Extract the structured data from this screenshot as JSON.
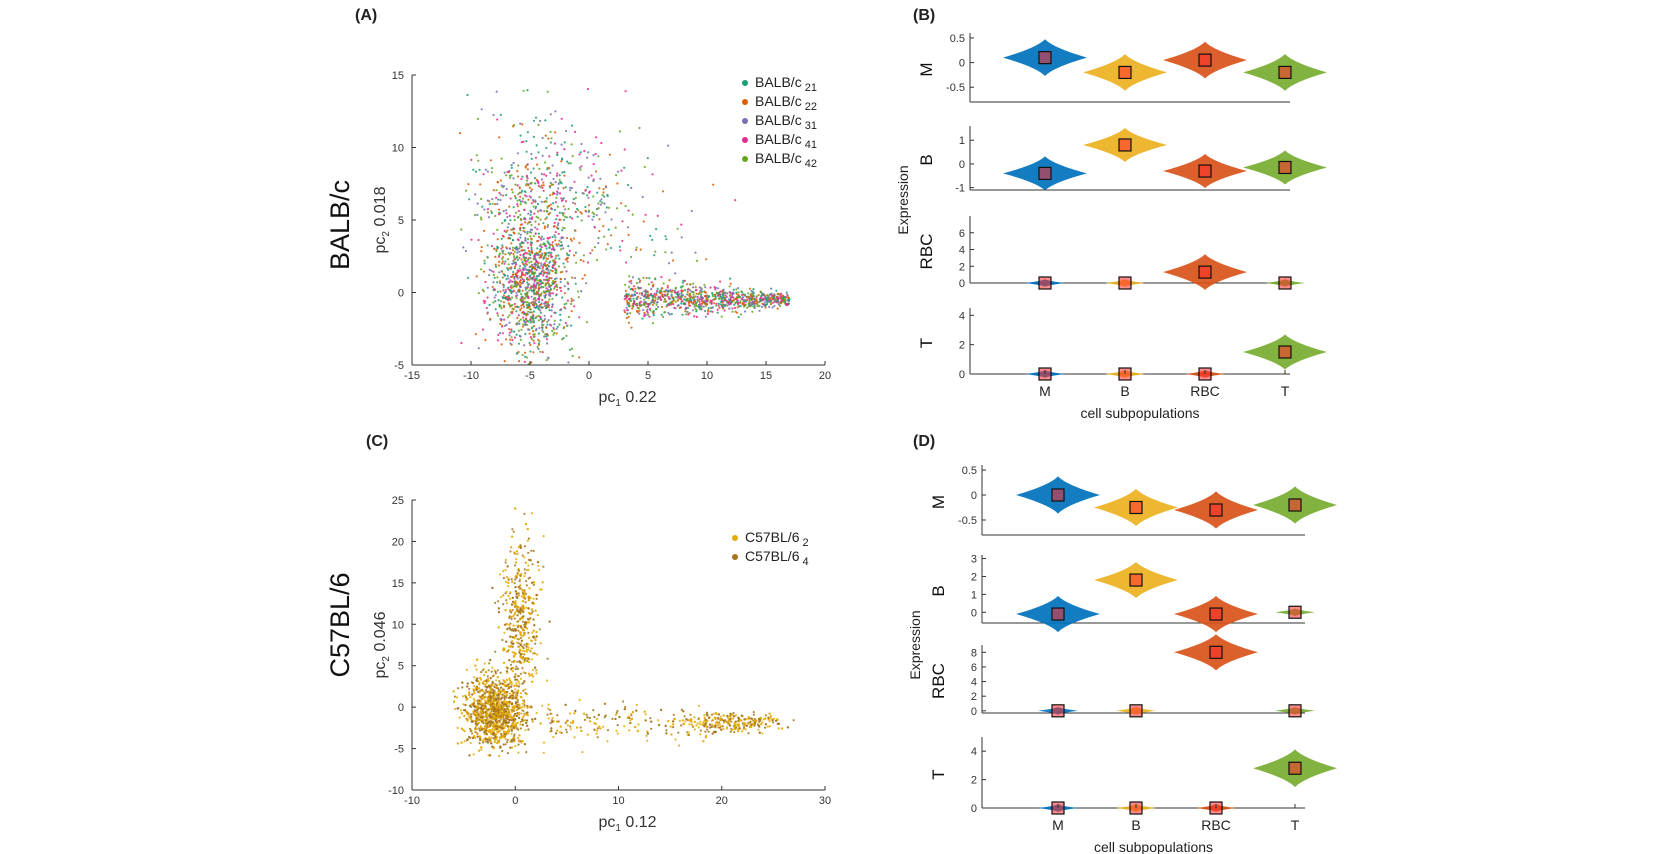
{
  "panels": {
    "A": {
      "label": "(A)",
      "strain": "BALB/c"
    },
    "B": {
      "label": "(B)"
    },
    "C": {
      "label": "(C)",
      "strain": "C57BL/6"
    },
    "D": {
      "label": "(D)"
    }
  },
  "colors": {
    "BALB/c 21": "#1b9e77",
    "BALB/c 22": "#d95f02",
    "BALB/c 31": "#7570b3",
    "BALB/c 41": "#e7298a",
    "BALB/c 42": "#66a61e",
    "C57BL/6 2": "#e6ab02",
    "C57BL/6 4": "#a6761d",
    "violin_M": "#0072bd",
    "violin_B": "#edb120",
    "violin_RBC": "#d95319",
    "violin_T": "#77ac30",
    "median_fill": "#ff2a2a"
  },
  "chart_data": [
    {
      "id": "A",
      "type": "scatter",
      "title": "",
      "xlabel_main": "pc",
      "xlabel_sub": "1",
      "xlabel_var": "0.22",
      "ylabel_main": "pc",
      "ylabel_sub": "2",
      "ylabel_var": "0.018",
      "row_label": "BALB/c",
      "xlim": [
        -15,
        20
      ],
      "ylim": [
        -5,
        15
      ],
      "xticks": [
        -15,
        -10,
        -5,
        0,
        5,
        10,
        15,
        20
      ],
      "yticks": [
        -5,
        0,
        5,
        10,
        15
      ],
      "legend_position": "top-right",
      "series": [
        {
          "name": "BALB/c",
          "sub": "21",
          "color": "#1b9e77"
        },
        {
          "name": "BALB/c",
          "sub": "22",
          "color": "#d95f02"
        },
        {
          "name": "BALB/c",
          "sub": "31",
          "color": "#7570b3"
        },
        {
          "name": "BALB/c",
          "sub": "41",
          "color": "#e7298a"
        },
        {
          "name": "BALB/c",
          "sub": "42",
          "color": "#66a61e"
        }
      ]
    },
    {
      "id": "B",
      "type": "violin",
      "ylabel": "Expression",
      "xlabel": "cell subpopulations",
      "categories": [
        "M",
        "B",
        "RBC",
        "T"
      ],
      "rows": [
        {
          "label": "M",
          "ylim": [
            -0.8,
            0.6
          ],
          "yticks": [
            0.5,
            0,
            -0.5
          ],
          "yticklabels": [
            "0.5",
            "0",
            "-0.5"
          ],
          "medians": [
            0.1,
            -0.2,
            0.05,
            -0.2
          ]
        },
        {
          "label": "B",
          "ylim": [
            -1.1,
            1.6
          ],
          "yticks": [
            1,
            0,
            -1
          ],
          "yticklabels": [
            "1",
            "0",
            "-1"
          ],
          "medians": [
            -0.4,
            0.8,
            -0.3,
            -0.15
          ]
        },
        {
          "label": "RBC",
          "ylim": [
            0,
            8
          ],
          "yticks": [
            0,
            2,
            4,
            6
          ],
          "yticklabels": [
            "0",
            "2",
            "4",
            "6"
          ],
          "medians": [
            0,
            0,
            1.3,
            0
          ]
        },
        {
          "label": "T",
          "ylim": [
            0,
            4.5
          ],
          "yticks": [
            0,
            2,
            4
          ],
          "yticklabels": [
            "0",
            "2",
            "4"
          ],
          "medians": [
            0,
            0,
            0,
            1.5
          ]
        }
      ]
    },
    {
      "id": "C",
      "type": "scatter",
      "title": "",
      "xlabel_main": "pc",
      "xlabel_sub": "1",
      "xlabel_var": "0.12",
      "ylabel_main": "pc",
      "ylabel_sub": "2",
      "ylabel_var": "0.046",
      "row_label": "C57BL/6",
      "xlim": [
        -10,
        30
      ],
      "ylim": [
        -10,
        25
      ],
      "xticks": [
        -10,
        0,
        10,
        20,
        30
      ],
      "yticks": [
        -10,
        -5,
        0,
        5,
        10,
        15,
        20,
        25
      ],
      "legend_position": "top-right",
      "series": [
        {
          "name": "C57BL/6",
          "sub": "2",
          "color": "#e6ab02"
        },
        {
          "name": "C57BL/6",
          "sub": "4",
          "color": "#a6761d"
        }
      ]
    },
    {
      "id": "D",
      "type": "violin",
      "ylabel": "Expression",
      "xlabel": "cell subpopulations",
      "categories": [
        "M",
        "B",
        "RBC",
        "T"
      ],
      "rows": [
        {
          "label": "M",
          "ylim": [
            -0.8,
            0.6
          ],
          "yticks": [
            0.5,
            0,
            -0.5
          ],
          "yticklabels": [
            "0.5",
            "0",
            "-0.5"
          ],
          "medians": [
            0.0,
            -0.25,
            -0.3,
            -0.2
          ]
        },
        {
          "label": "B",
          "ylim": [
            -0.6,
            3.2
          ],
          "yticks": [
            3,
            2,
            1,
            0
          ],
          "yticklabels": [
            "3",
            "2",
            "1",
            "0"
          ],
          "medians": [
            -0.1,
            1.8,
            -0.1,
            0
          ]
        },
        {
          "label": "RBC",
          "ylim": [
            -0.3,
            9
          ],
          "yticks": [
            8,
            6,
            4,
            2,
            0
          ],
          "yticklabels": [
            "8",
            "6",
            "4",
            "2",
            "0"
          ],
          "medians": [
            0,
            0,
            8,
            0
          ]
        },
        {
          "label": "T",
          "ylim": [
            0,
            5
          ],
          "yticks": [
            4,
            2,
            0
          ],
          "yticklabels": [
            "4",
            "2",
            "0"
          ],
          "medians": [
            0,
            0,
            0,
            2.8
          ]
        }
      ]
    }
  ]
}
